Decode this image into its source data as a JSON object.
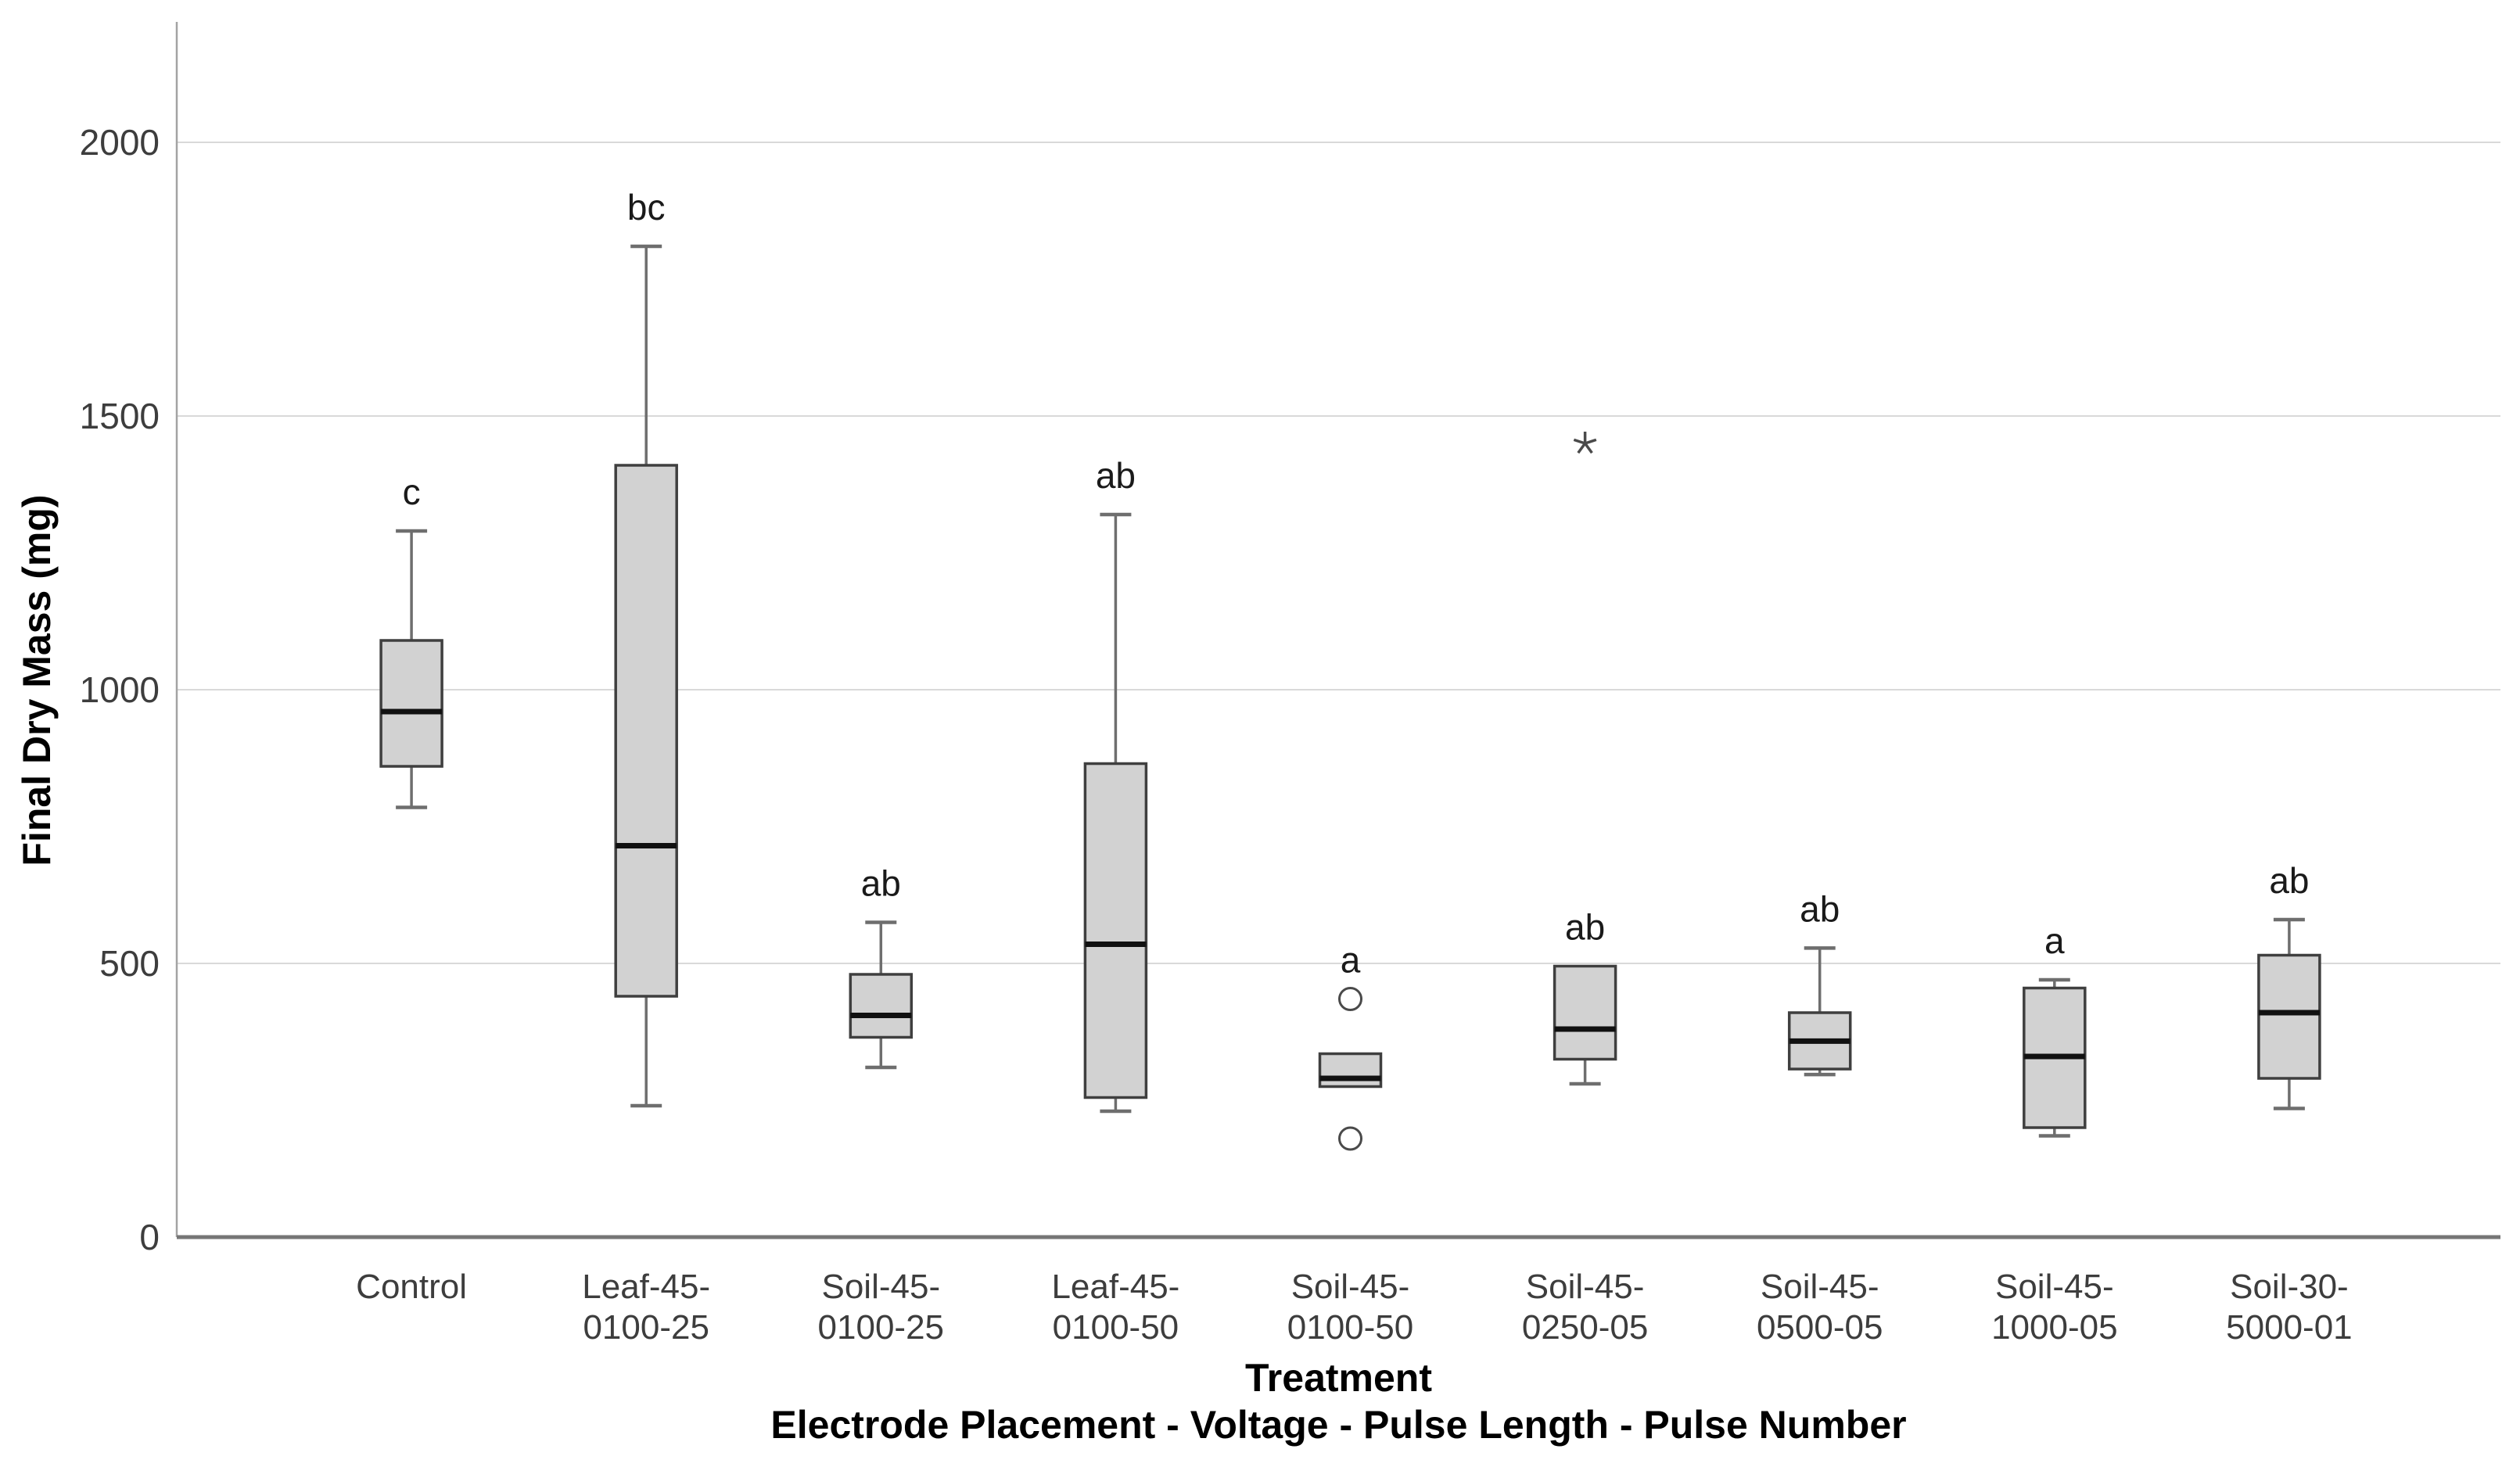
{
  "figure": {
    "kind": "statistical-boxplot-figure",
    "background": "#ffffff"
  },
  "chart_data": {
    "type": "boxplot",
    "title": "",
    "ylabel": "Final Dry Mass (mg)",
    "xlabel_line1": "Treatment",
    "xlabel_line2": "Electrode Placement - Voltage - Pulse Length - Pulse Number",
    "ylim": [
      0,
      2220
    ],
    "yticks": [
      0,
      500,
      1000,
      1500,
      2000
    ],
    "grid": "horizontal-lines-at-500-1000-1500-2000",
    "legend": "none",
    "categories": [
      {
        "label_lines": [
          "Control"
        ],
        "letter": "c",
        "whisker_low": 785,
        "q1": 860,
        "median": 960,
        "q3": 1090,
        "whisker_high": 1290,
        "outliers": [],
        "extremes": []
      },
      {
        "label_lines": [
          "Leaf-45-",
          "0100-25"
        ],
        "letter": "bc",
        "whisker_low": 240,
        "q1": 440,
        "median": 715,
        "q3": 1410,
        "whisker_high": 1810,
        "outliers": [],
        "extremes": []
      },
      {
        "label_lines": [
          "Soil-45-",
          "0100-25"
        ],
        "letter": "ab",
        "whisker_low": 310,
        "q1": 365,
        "median": 405,
        "q3": 480,
        "whisker_high": 575,
        "outliers": [],
        "extremes": []
      },
      {
        "label_lines": [
          "Leaf-45-",
          "0100-50"
        ],
        "letter": "ab",
        "whisker_low": 230,
        "q1": 255,
        "median": 535,
        "q3": 865,
        "whisker_high": 1320,
        "outliers": [],
        "extremes": []
      },
      {
        "label_lines": [
          "Soil-45-",
          "0100-50"
        ],
        "letter": "a",
        "whisker_low": null,
        "q1": 275,
        "median": 290,
        "q3": 335,
        "whisker_high": null,
        "outliers": [
          435,
          180
        ],
        "extremes": []
      },
      {
        "label_lines": [
          "Soil-45-",
          "0250-05"
        ],
        "letter": "ab",
        "whisker_low": 280,
        "q1": 325,
        "median": 380,
        "q3": 495,
        "whisker_high": null,
        "outliers": [],
        "extremes": [
          1450
        ]
      },
      {
        "label_lines": [
          "Soil-45-",
          "0500-05"
        ],
        "letter": "ab",
        "whisker_low": 297,
        "q1": 307,
        "median": 358,
        "q3": 410,
        "whisker_high": 528,
        "outliers": [],
        "extremes": []
      },
      {
        "label_lines": [
          "Soil-45-",
          "1000-05"
        ],
        "letter": "a",
        "whisker_low": 185,
        "q1": 200,
        "median": 330,
        "q3": 455,
        "whisker_high": 470,
        "outliers": [],
        "extremes": []
      },
      {
        "label_lines": [
          "Soil-30-",
          "5000-01"
        ],
        "letter": "ab",
        "whisker_low": 235,
        "q1": 290,
        "median": 410,
        "q3": 515,
        "whisker_high": 580,
        "outliers": [],
        "extremes": []
      }
    ],
    "colors": {
      "box_fill": "#d2d2d2",
      "box_stroke": "#3f3f3f",
      "median_stroke": "#111111",
      "whisker_stroke": "#6e6e6e",
      "gridline": "#d9d9d9",
      "y_spine": "#a3a3a3",
      "x_spine": "#767676",
      "tick_text": "#3d3d3d",
      "letter_text": "#1a1a1a",
      "outlier_stroke": "#4a4a4a"
    }
  }
}
